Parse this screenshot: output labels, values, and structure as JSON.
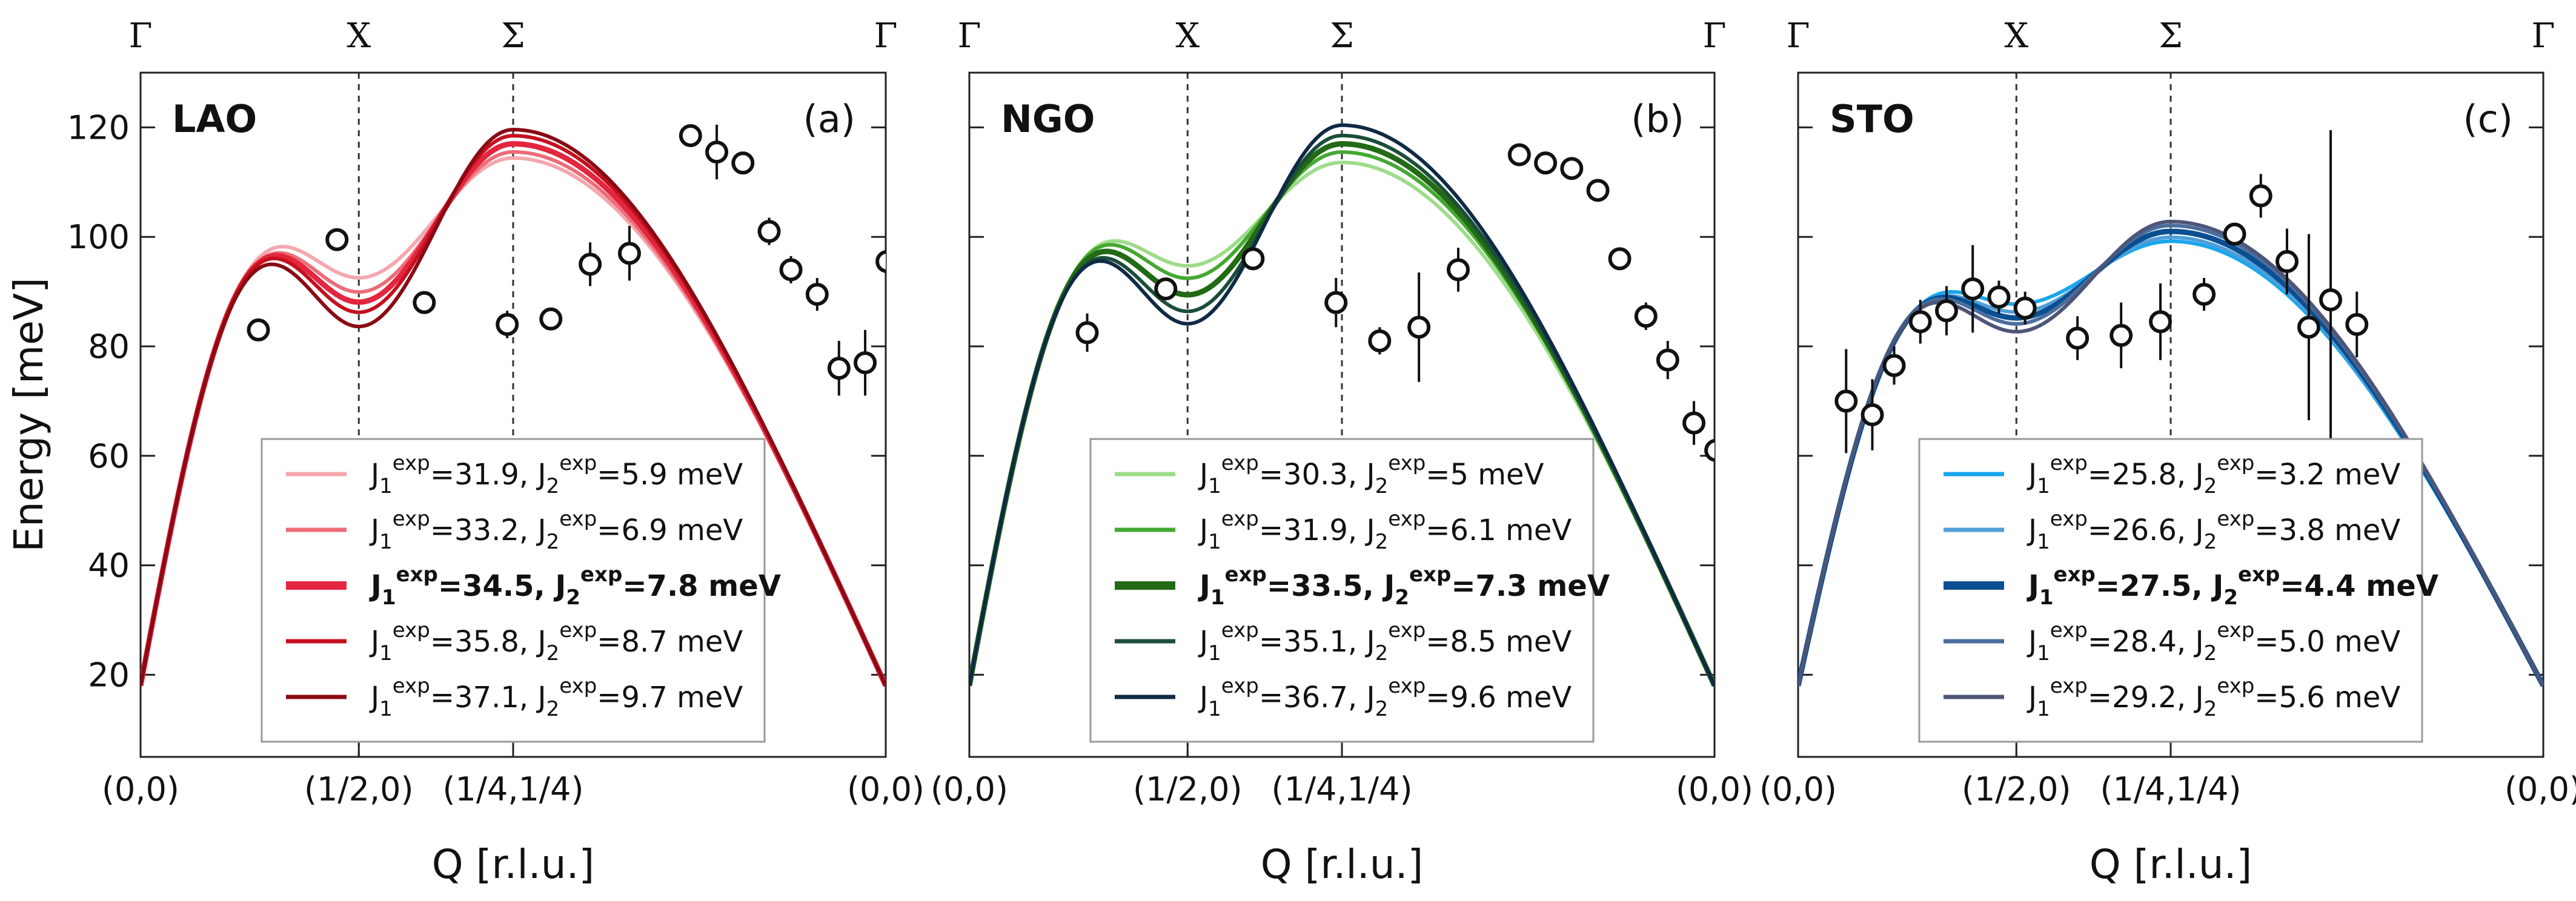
{
  "ylabel": "Energy [meV]",
  "xlabel": "Q [r.l.u.]",
  "symmetry_points": [
    "Γ",
    "X",
    "Σ",
    "Γ"
  ],
  "q_points": [
    "(0,0)",
    "(1/2,0)",
    "(1/4,1/4)",
    "(0,0)"
  ],
  "yticks": [
    20,
    40,
    60,
    80,
    100,
    120
  ],
  "chart_data": [
    {
      "type": "line",
      "name": "LAO",
      "panel_label": "(a)",
      "xlabel": "Q [r.l.u.]",
      "ylabel": "Energy [meV]",
      "ylim": [
        5,
        130
      ],
      "x_path": [
        "Γ (0,0)",
        "X (1/2,0)",
        "Σ (1/4,1/4)",
        "Γ (0,0)"
      ],
      "legend_position": "bottom-center",
      "series": [
        {
          "name": "J1exp=31.9, J2exp=5.9 meV",
          "J1": 31.9,
          "J2": 5.9,
          "unit": "meV",
          "color": "#f4a7ae",
          "bold": false,
          "J1_label": "=31.9,",
          "J2_label": "=5.9 meV"
        },
        {
          "name": "J1exp=33.2, J2exp=6.9 meV",
          "J1": 33.2,
          "J2": 6.9,
          "unit": "meV",
          "color": "#ec6d78",
          "bold": false,
          "J1_label": "=33.2,",
          "J2_label": "=6.9 meV"
        },
        {
          "name": "J1exp=34.5, J2exp=7.8 meV",
          "J1": 34.5,
          "J2": 7.8,
          "unit": "meV",
          "color": "#e3263d",
          "bold": true,
          "J1_label": "=34.5,",
          "J2_label": "=7.8 meV"
        },
        {
          "name": "J1exp=35.8, J2exp=8.7 meV",
          "J1": 35.8,
          "J2": 8.7,
          "unit": "meV",
          "color": "#c4101f",
          "bold": false,
          "J1_label": "=35.8,",
          "J2_label": "=8.7 meV"
        },
        {
          "name": "J1exp=37.1, J2exp=9.7 meV",
          "J1": 37.1,
          "J2": 9.7,
          "unit": "meV",
          "color": "#8a0a14",
          "bold": false,
          "J1_label": "=37.1,",
          "J2_label": "=9.7 meV"
        }
      ],
      "points": [
        {
          "x": 0.27,
          "y": 83.0,
          "err": 0
        },
        {
          "x": 0.45,
          "y": 99.5,
          "err": 2.0
        },
        {
          "x": 0.65,
          "y": 88.0,
          "err": 2.0
        },
        {
          "x": 0.84,
          "y": 84.0,
          "err": 2.5
        },
        {
          "x": 0.94,
          "y": 85.0,
          "err": 2.0
        },
        {
          "x": 1.03,
          "y": 95.0,
          "err": 4.0
        },
        {
          "x": 1.12,
          "y": 97.0,
          "err": 5.0
        },
        {
          "x": 1.26,
          "y": 118.5,
          "err": 2.0
        },
        {
          "x": 1.32,
          "y": 115.5,
          "err": 5.0
        },
        {
          "x": 1.38,
          "y": 113.5,
          "err": 2.0
        },
        {
          "x": 1.44,
          "y": 101.0,
          "err": 2.5
        },
        {
          "x": 1.49,
          "y": 94.0,
          "err": 2.5
        },
        {
          "x": 1.55,
          "y": 89.5,
          "err": 3.0
        },
        {
          "x": 1.6,
          "y": 76.0,
          "err": 5.0
        },
        {
          "x": 1.66,
          "y": 77.0,
          "err": 6.0
        },
        {
          "x": 1.71,
          "y": 95.5,
          "err": 20.0
        }
      ]
    },
    {
      "type": "line",
      "name": "NGO",
      "panel_label": "(b)",
      "xlabel": "Q [r.l.u.]",
      "ylabel": "Energy [meV]",
      "ylim": [
        5,
        130
      ],
      "x_path": [
        "Γ (0,0)",
        "X (1/2,0)",
        "Σ (1/4,1/4)",
        "Γ (0,0)"
      ],
      "legend_position": "bottom-center",
      "series": [
        {
          "name": "J1exp=30.3, J2exp=5 meV",
          "J1": 30.3,
          "J2": 5.0,
          "unit": "meV",
          "color": "#9edc8a",
          "bold": false,
          "J1_label": "=30.3,",
          "J2_label": "=5 meV"
        },
        {
          "name": "J1exp=31.9, J2exp=6.1 meV",
          "J1": 31.9,
          "J2": 6.1,
          "unit": "meV",
          "color": "#43a832",
          "bold": false,
          "J1_label": "=31.9,",
          "J2_label": "=6.1 meV"
        },
        {
          "name": "J1exp=33.5, J2exp=7.3 meV",
          "J1": 33.5,
          "J2": 7.3,
          "unit": "meV",
          "color": "#226a15",
          "bold": true,
          "J1_label": "=33.5,",
          "J2_label": "=7.3 meV"
        },
        {
          "name": "J1exp=35.1, J2exp=8.5 meV",
          "J1": 35.1,
          "J2": 8.5,
          "unit": "meV",
          "color": "#1a4e3a",
          "bold": false,
          "J1_label": "=35.1,",
          "J2_label": "=8.5 meV"
        },
        {
          "name": "J1exp=36.7, J2exp=9.6 meV",
          "J1": 36.7,
          "J2": 9.6,
          "unit": "meV",
          "color": "#0f2a44",
          "bold": false,
          "J1_label": "=36.7,",
          "J2_label": "=9.6 meV"
        }
      ],
      "points": [
        {
          "x": 0.27,
          "y": 82.5,
          "err": 3.5
        },
        {
          "x": 0.45,
          "y": 90.5,
          "err": 0
        },
        {
          "x": 0.65,
          "y": 96.0,
          "err": 0
        },
        {
          "x": 0.84,
          "y": 88.0,
          "err": 4.5
        },
        {
          "x": 0.94,
          "y": 81.0,
          "err": 2.5
        },
        {
          "x": 1.03,
          "y": 83.5,
          "err": 10.0
        },
        {
          "x": 1.12,
          "y": 94.0,
          "err": 4.0
        },
        {
          "x": 1.26,
          "y": 115.0,
          "err": 2.0
        },
        {
          "x": 1.32,
          "y": 113.5,
          "err": 2.0
        },
        {
          "x": 1.38,
          "y": 112.5,
          "err": 2.0
        },
        {
          "x": 1.44,
          "y": 108.5,
          "err": 2.0
        },
        {
          "x": 1.49,
          "y": 96.0,
          "err": 2.0
        },
        {
          "x": 1.55,
          "y": 85.5,
          "err": 2.5
        },
        {
          "x": 1.6,
          "y": 77.5,
          "err": 3.5
        },
        {
          "x": 1.66,
          "y": 66.0,
          "err": 4.0
        },
        {
          "x": 1.71,
          "y": 61.0,
          "err": 7.5
        }
      ]
    },
    {
      "type": "line",
      "name": "STO",
      "panel_label": "(c)",
      "xlabel": "Q [r.l.u.]",
      "ylabel": "Energy [meV]",
      "ylim": [
        5,
        130
      ],
      "x_path": [
        "Γ (0,0)",
        "X (1/2,0)",
        "Σ (1/4,1/4)",
        "Γ (0,0)"
      ],
      "legend_position": "bottom-center",
      "series": [
        {
          "name": "J1exp=25.8, J2exp=3.2 meV",
          "J1": 25.8,
          "J2": 3.2,
          "unit": "meV",
          "color": "#1aa6ec",
          "bold": false,
          "J1_label": "=25.8,",
          "J2_label": "=3.2 meV"
        },
        {
          "name": "J1exp=26.6, J2exp=3.8 meV",
          "J1": 26.6,
          "J2": 3.8,
          "unit": "meV",
          "color": "#4f9ed8",
          "bold": false,
          "J1_label": "=26.6,",
          "J2_label": "=3.8 meV"
        },
        {
          "name": "J1exp=27.5, J2exp=4.4 meV",
          "J1": 27.5,
          "J2": 4.4,
          "unit": "meV",
          "color": "#0a4f92",
          "bold": true,
          "J1_label": "=27.5,",
          "J2_label": "=4.4 meV"
        },
        {
          "name": "J1exp=28.4, J2exp=5.0 meV",
          "J1": 28.4,
          "J2": 5.0,
          "unit": "meV",
          "color": "#4a6e9c",
          "bold": false,
          "J1_label": "=28.4,",
          "J2_label": "=5.0 meV"
        },
        {
          "name": "J1exp=29.2, J2exp=5.6 meV",
          "J1": 29.2,
          "J2": 5.6,
          "unit": "meV",
          "color": "#4d5578",
          "bold": false,
          "J1_label": "=29.2,",
          "J2_label": "=5.6 meV"
        }
      ],
      "points": [
        {
          "x": 0.11,
          "y": 70.0,
          "err": 9.5
        },
        {
          "x": 0.17,
          "y": 67.5,
          "err": 6.5
        },
        {
          "x": 0.22,
          "y": 76.5,
          "err": 3.5
        },
        {
          "x": 0.28,
          "y": 84.5,
          "err": 4.0
        },
        {
          "x": 0.34,
          "y": 86.5,
          "err": 4.5
        },
        {
          "x": 0.4,
          "y": 90.5,
          "err": 8.0
        },
        {
          "x": 0.46,
          "y": 89.0,
          "err": 3.0
        },
        {
          "x": 0.52,
          "y": 87.0,
          "err": 3.0
        },
        {
          "x": 0.64,
          "y": 81.5,
          "err": 4.0
        },
        {
          "x": 0.74,
          "y": 82.0,
          "err": 6.0
        },
        {
          "x": 0.83,
          "y": 84.5,
          "err": 7.0
        },
        {
          "x": 0.93,
          "y": 89.5,
          "err": 3.0
        },
        {
          "x": 1.0,
          "y": 100.5,
          "err": 2.0
        },
        {
          "x": 1.06,
          "y": 107.5,
          "err": 4.0
        },
        {
          "x": 1.12,
          "y": 95.5,
          "err": 6.0
        },
        {
          "x": 1.17,
          "y": 83.5,
          "err": 17.0
        },
        {
          "x": 1.22,
          "y": 88.5,
          "err": 31.0
        },
        {
          "x": 1.28,
          "y": 84.0,
          "err": 6.0
        }
      ]
    }
  ]
}
